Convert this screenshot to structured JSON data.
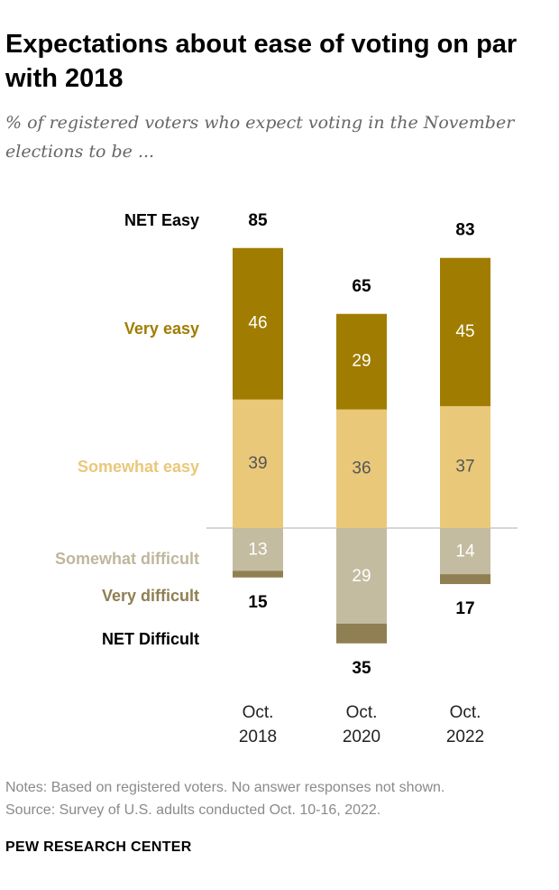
{
  "title": "Expectations about ease of voting on par with 2018",
  "subtitle": "% of registered voters who expect voting in the November elections to be ...",
  "chart_data": {
    "type": "bar",
    "stacked": "diverging",
    "categories": [
      {
        "line1": "Oct.",
        "line2": "2018"
      },
      {
        "line1": "Oct.",
        "line2": "2020"
      },
      {
        "line1": "Oct.",
        "line2": "2022"
      }
    ],
    "positive_series": [
      {
        "name": "Somewhat easy",
        "values": [
          39,
          36,
          37
        ],
        "color": "#e9c87a",
        "label_color": "#555555"
      },
      {
        "name": "Very easy",
        "values": [
          46,
          29,
          45
        ],
        "color": "#a07d00",
        "label_color": "#ffffff"
      }
    ],
    "negative_series": [
      {
        "name": "Somewhat difficult",
        "values": [
          13,
          29,
          14
        ],
        "color": "#c3bca0",
        "label_color": "#ffffff"
      },
      {
        "name": "Very difficult",
        "values": [
          2,
          6,
          3
        ],
        "color": "#8f7f52",
        "label_color": null
      }
    ],
    "net_easy": {
      "name": "NET Easy",
      "values": [
        85,
        65,
        83
      ]
    },
    "net_difficult": {
      "name": "NET Difficult",
      "values": [
        15,
        35,
        17
      ]
    },
    "label_colors": {
      "NET Easy": "#000000",
      "Very easy": "#a07d00",
      "Somewhat easy": "#e9c87a",
      "Somewhat difficult": "#bfb79c",
      "Very difficult": "#8f7f52",
      "NET Difficult": "#000000"
    },
    "row_labels": [
      "NET Easy",
      "Very easy",
      "Somewhat easy",
      "Somewhat difficult",
      "Very difficult",
      "NET Difficult"
    ]
  },
  "notes": {
    "line1": "Notes: Based on registered voters. No answer responses not shown.",
    "line2": "Source: Survey of U.S. adults conducted Oct. 10-16, 2022."
  },
  "source_org": "PEW RESEARCH CENTER"
}
